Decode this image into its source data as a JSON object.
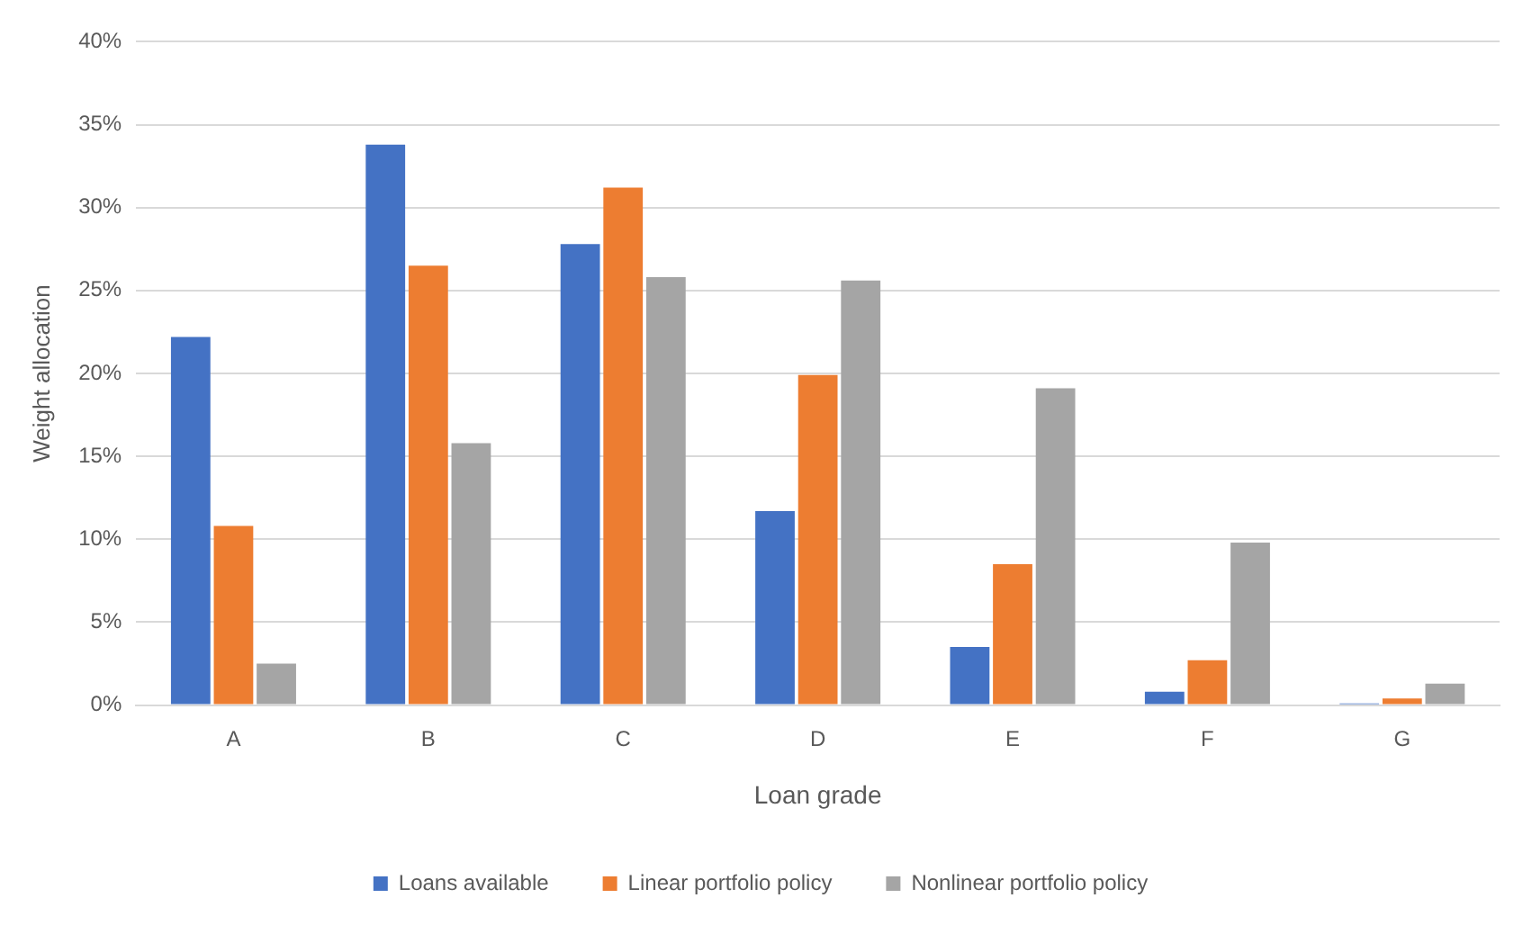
{
  "chart_data": {
    "type": "bar",
    "xlabel": "Loan grade",
    "ylabel": "Weight allocation",
    "categories": [
      "A",
      "B",
      "C",
      "D",
      "E",
      "F",
      "G"
    ],
    "series": [
      {
        "name": "Loans available",
        "color": "#4472c4",
        "values": [
          22.2,
          33.8,
          27.8,
          11.7,
          3.5,
          0.8,
          0.1
        ]
      },
      {
        "name": "Linear portfolio policy",
        "color": "#ed7d31",
        "values": [
          10.8,
          26.5,
          31.2,
          19.9,
          8.5,
          2.7,
          0.4
        ]
      },
      {
        "name": "Nonlinear portfolio policy",
        "color": "#a5a5a5",
        "values": [
          2.5,
          15.8,
          25.8,
          25.6,
          19.1,
          9.8,
          1.3
        ]
      }
    ],
    "ylim": [
      0,
      40
    ],
    "yticks": [
      {
        "value": 0,
        "label": "0%"
      },
      {
        "value": 5,
        "label": "5%"
      },
      {
        "value": 10,
        "label": "10%"
      },
      {
        "value": 15,
        "label": "15%"
      },
      {
        "value": 20,
        "label": "20%"
      },
      {
        "value": 25,
        "label": "25%"
      },
      {
        "value": 30,
        "label": "30%"
      },
      {
        "value": 35,
        "label": "35%"
      },
      {
        "value": 40,
        "label": "40%"
      }
    ],
    "grid": "y",
    "legend": "bottom"
  }
}
